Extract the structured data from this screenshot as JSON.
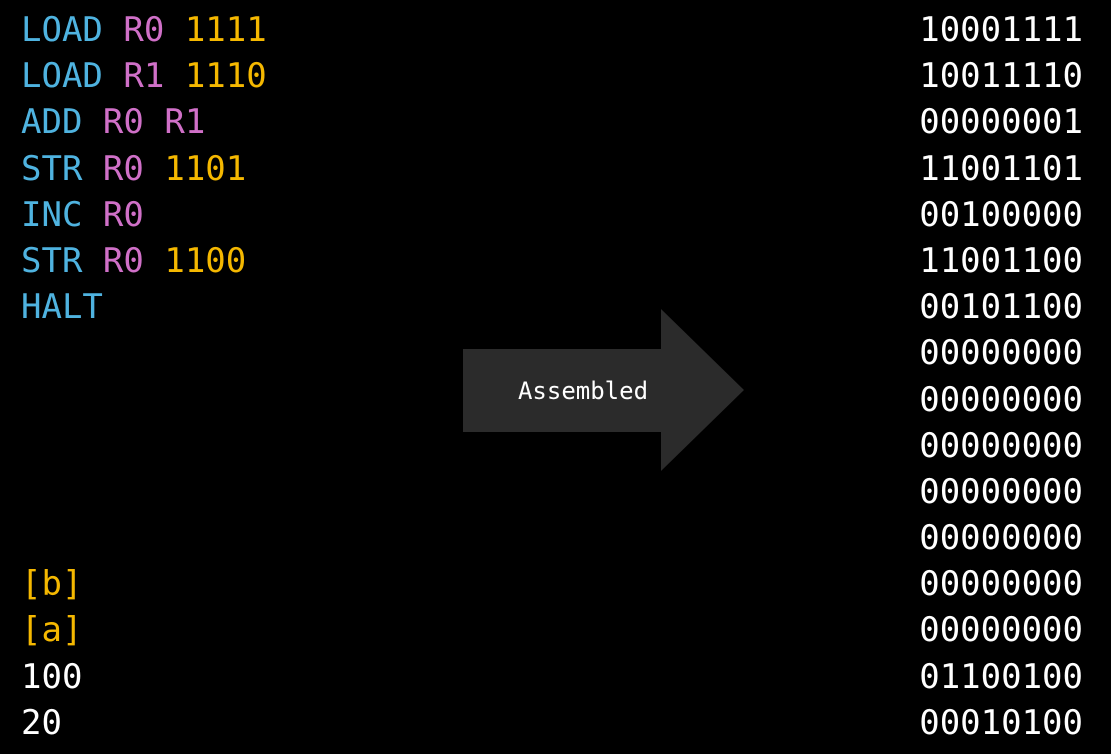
{
  "colors": {
    "opcode": "#4fb3e0",
    "register": "#d070c8",
    "address": "#f5b800",
    "value": "#ffffff",
    "arrow": "#2b2b2b"
  },
  "assembly": [
    [
      {
        "t": "LOAD",
        "k": "opcode"
      },
      {
        "t": "R0",
        "k": "register"
      },
      {
        "t": "1111",
        "k": "address"
      }
    ],
    [
      {
        "t": "LOAD",
        "k": "opcode"
      },
      {
        "t": "R1",
        "k": "register"
      },
      {
        "t": "1110",
        "k": "address"
      }
    ],
    [
      {
        "t": "ADD",
        "k": "opcode"
      },
      {
        "t": "R0",
        "k": "register"
      },
      {
        "t": "R1",
        "k": "register"
      }
    ],
    [
      {
        "t": "STR",
        "k": "opcode"
      },
      {
        "t": "R0",
        "k": "register"
      },
      {
        "t": "1101",
        "k": "address"
      }
    ],
    [
      {
        "t": "INC",
        "k": "opcode"
      },
      {
        "t": "R0",
        "k": "register"
      }
    ],
    [
      {
        "t": "STR",
        "k": "opcode"
      },
      {
        "t": "R0",
        "k": "register"
      },
      {
        "t": "1100",
        "k": "address"
      }
    ],
    [
      {
        "t": "HALT",
        "k": "opcode"
      }
    ],
    [],
    [],
    [],
    [],
    [],
    [
      {
        "t": "[b]",
        "k": "address"
      }
    ],
    [
      {
        "t": "[a]",
        "k": "address"
      }
    ],
    [
      {
        "t": "100",
        "k": "value"
      }
    ],
    [
      {
        "t": "20",
        "k": "value"
      }
    ]
  ],
  "arrow_label": "Assembled",
  "machine_code": [
    "10001111",
    "10011110",
    "00000001",
    "11001101",
    "00100000",
    "11001100",
    "00101100",
    "00000000",
    "00000000",
    "00000000",
    "00000000",
    "00000000",
    "00000000",
    "00000000",
    "01100100",
    "00010100"
  ]
}
